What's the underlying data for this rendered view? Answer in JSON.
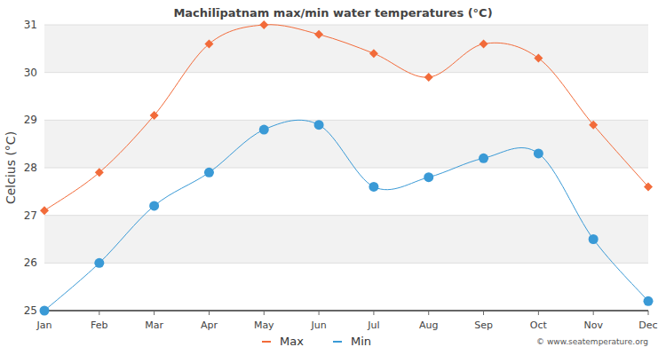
{
  "chart_data": {
    "type": "line",
    "title": "Machilīpatnam max/min water temperatures (°C)",
    "y_label": "Celcius (°C)",
    "source": "© www.seatemperature.org",
    "categories": [
      "Jan",
      "Feb",
      "Mar",
      "Apr",
      "May",
      "Jun",
      "Jul",
      "Aug",
      "Sep",
      "Oct",
      "Nov",
      "Dec"
    ],
    "series": [
      {
        "name": "Max",
        "color": "#f26b3a",
        "marker": "diamond",
        "values": [
          27.1,
          27.9,
          29.1,
          30.6,
          31.0,
          30.8,
          30.4,
          29.9,
          30.6,
          30.3,
          28.9,
          27.6
        ]
      },
      {
        "name": "Min",
        "color": "#3a9ad6",
        "marker": "circle",
        "values": [
          25.0,
          26.0,
          27.2,
          27.9,
          28.8,
          28.9,
          27.6,
          27.8,
          28.2,
          28.3,
          26.5,
          25.2
        ]
      }
    ],
    "ylim": [
      25,
      31
    ],
    "yticks": [
      25,
      26,
      27,
      28,
      29,
      30,
      31
    ],
    "grid": true,
    "legend": "bottom"
  }
}
